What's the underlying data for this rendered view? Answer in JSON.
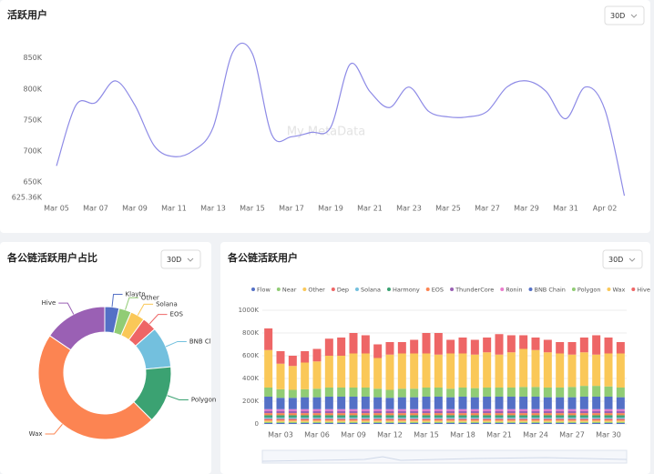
{
  "chart_data": [
    {
      "type": "line",
      "title": "活跃用户",
      "range": "30D",
      "watermark": "My MetaData",
      "color": "#8d8ae6",
      "categories": [
        "Mar 05",
        null,
        "Mar 07",
        null,
        "Mar 09",
        null,
        "Mar 11",
        null,
        "Mar 13",
        null,
        "Mar 15",
        null,
        "Mar 17",
        null,
        "Mar 19",
        null,
        "Mar 21",
        null,
        "Mar 23",
        null,
        "Mar 25",
        null,
        "Mar 27",
        null,
        "Mar 29",
        null,
        "Mar 31",
        null,
        "Apr 02",
        null
      ],
      "values": [
        676000,
        774000,
        778000,
        813000,
        774000,
        708000,
        691000,
        701000,
        738000,
        859000,
        857000,
        726000,
        723000,
        730000,
        738000,
        840000,
        796000,
        770000,
        803000,
        764000,
        755000,
        755000,
        764000,
        803000,
        813000,
        796000,
        752000,
        803000,
        767000,
        628000
      ],
      "ylim": [
        625360,
        870000
      ],
      "yticks": [
        {
          "value": 625360,
          "label": "625.36K"
        },
        {
          "value": 650000,
          "label": "650K"
        },
        {
          "value": 700000,
          "label": "700K"
        },
        {
          "value": 750000,
          "label": "750K"
        },
        {
          "value": 800000,
          "label": "800K"
        },
        {
          "value": 850000,
          "label": "850K"
        }
      ],
      "grid": false
    },
    {
      "type": "pie",
      "title": "各公链活跃用户占比",
      "range": "30D",
      "categories": [
        "Klaytn",
        "Other",
        "Solana",
        "EOS",
        "BNB Cl",
        "Polygon",
        "Wax",
        "Hive"
      ],
      "values": [
        3.5,
        3,
        3.5,
        3.5,
        10,
        14,
        47,
        15.5
      ],
      "colors": [
        "#5470c6",
        "#91cc75",
        "#fac858",
        "#ee6666",
        "#73c0de",
        "#3ba272",
        "#fc8452",
        "#9a60b4"
      ]
    },
    {
      "type": "stacked-bar",
      "title": "各公链活跃用户",
      "range": "30D",
      "grid": true,
      "categories": [
        null,
        "Mar 03",
        null,
        null,
        "Mar 06",
        null,
        null,
        "Mar 09",
        null,
        null,
        "Mar 12",
        null,
        null,
        "Mar 15",
        null,
        null,
        "Mar 18",
        null,
        null,
        "Mar 21",
        null,
        null,
        "Mar 24",
        null,
        null,
        "Mar 27",
        null,
        null,
        "Mar 30",
        null
      ],
      "ylim": [
        0,
        1000000
      ],
      "yticks": [
        0,
        {
          "value": 200000,
          "label": "200K"
        },
        {
          "value": 400000,
          "label": "400K"
        },
        {
          "value": 600000,
          "label": "600K"
        },
        {
          "value": 800000,
          "label": "800K"
        },
        {
          "value": 1000000,
          "label": "1000K"
        }
      ],
      "series": [
        {
          "name": "Flow",
          "color": "#5470c6",
          "values": [
            8000,
            8000,
            8000,
            8000,
            8000,
            8000,
            8000,
            8000,
            8000,
            8000,
            8000,
            8000,
            8000,
            8000,
            8000,
            8000,
            8000,
            8000,
            8000,
            8000,
            8000,
            8000,
            8000,
            8000,
            8000,
            8000,
            8000,
            8000,
            8000,
            8000
          ]
        },
        {
          "name": "Near",
          "color": "#91cc75",
          "values": [
            10000,
            10000,
            10000,
            10000,
            10000,
            10000,
            10000,
            10000,
            10000,
            10000,
            10000,
            10000,
            10000,
            10000,
            10000,
            10000,
            10000,
            10000,
            10000,
            10000,
            10000,
            10000,
            10000,
            10000,
            10000,
            10000,
            10000,
            10000,
            10000,
            10000
          ]
        },
        {
          "name": "Other",
          "color": "#fac858",
          "values": [
            12000,
            12000,
            12000,
            12000,
            12000,
            12000,
            12000,
            12000,
            12000,
            12000,
            12000,
            12000,
            12000,
            12000,
            12000,
            12000,
            12000,
            12000,
            12000,
            12000,
            12000,
            12000,
            12000,
            12000,
            12000,
            12000,
            12000,
            12000,
            12000,
            12000
          ]
        },
        {
          "name": "Dep",
          "color": "#ee6666",
          "values": [
            15000,
            15000,
            15000,
            15000,
            15000,
            15000,
            15000,
            15000,
            15000,
            15000,
            15000,
            15000,
            15000,
            15000,
            15000,
            15000,
            15000,
            15000,
            15000,
            15000,
            15000,
            15000,
            15000,
            15000,
            15000,
            15000,
            15000,
            15000,
            15000,
            15000
          ]
        },
        {
          "name": "Solana",
          "color": "#73c0de",
          "values": [
            12000,
            12000,
            12000,
            12000,
            12000,
            12000,
            12000,
            12000,
            12000,
            12000,
            12000,
            12000,
            12000,
            12000,
            12000,
            12000,
            12000,
            12000,
            12000,
            12000,
            12000,
            12000,
            12000,
            12000,
            12000,
            12000,
            12000,
            12000,
            12000,
            12000
          ]
        },
        {
          "name": "Harmony",
          "color": "#3ba272",
          "values": [
            20000,
            20000,
            20000,
            20000,
            20000,
            20000,
            20000,
            20000,
            20000,
            20000,
            20000,
            20000,
            20000,
            20000,
            20000,
            20000,
            20000,
            20000,
            20000,
            20000,
            20000,
            20000,
            20000,
            20000,
            20000,
            20000,
            20000,
            20000,
            20000,
            20000
          ]
        },
        {
          "name": "EOS",
          "color": "#fc8452",
          "values": [
            18000,
            18000,
            18000,
            18000,
            18000,
            18000,
            18000,
            18000,
            18000,
            18000,
            18000,
            18000,
            18000,
            18000,
            18000,
            18000,
            18000,
            18000,
            18000,
            18000,
            18000,
            18000,
            18000,
            18000,
            18000,
            18000,
            18000,
            18000,
            18000,
            18000
          ]
        },
        {
          "name": "ThunderCore",
          "color": "#9a60b4",
          "values": [
            20000,
            20000,
            20000,
            20000,
            20000,
            20000,
            20000,
            20000,
            20000,
            20000,
            20000,
            20000,
            20000,
            20000,
            20000,
            20000,
            20000,
            20000,
            20000,
            20000,
            20000,
            20000,
            20000,
            20000,
            20000,
            20000,
            20000,
            20000,
            20000,
            20000
          ]
        },
        {
          "name": "Ronin",
          "color": "#ea7ccc",
          "values": [
            15000,
            15000,
            15000,
            15000,
            15000,
            15000,
            15000,
            15000,
            15000,
            15000,
            15000,
            15000,
            15000,
            15000,
            15000,
            15000,
            15000,
            15000,
            15000,
            15000,
            15000,
            15000,
            15000,
            15000,
            15000,
            15000,
            15000,
            15000,
            15000,
            15000
          ]
        },
        {
          "name": "BNB Chain",
          "color": "#5470c6",
          "values": [
            110000,
            100000,
            100000,
            105000,
            105000,
            110000,
            110000,
            110000,
            110000,
            105000,
            100000,
            105000,
            105000,
            110000,
            110000,
            105000,
            110000,
            105000,
            110000,
            110000,
            110000,
            110000,
            110000,
            105000,
            105000,
            105000,
            110000,
            110000,
            110000,
            105000
          ]
        },
        {
          "name": "Polygon",
          "color": "#91cc75",
          "values": [
            80000,
            75000,
            70000,
            70000,
            75000,
            80000,
            80000,
            80000,
            80000,
            75000,
            70000,
            75000,
            75000,
            80000,
            80000,
            75000,
            80000,
            80000,
            80000,
            80000,
            80000,
            85000,
            85000,
            85000,
            85000,
            90000,
            95000,
            95000,
            90000,
            85000
          ]
        },
        {
          "name": "Wax",
          "color": "#fac858",
          "values": [
            330000,
            225000,
            210000,
            235000,
            240000,
            280000,
            280000,
            300000,
            300000,
            270000,
            310000,
            310000,
            310000,
            300000,
            290000,
            310000,
            300000,
            295000,
            310000,
            290000,
            310000,
            335000,
            325000,
            310000,
            300000,
            285000,
            295000,
            275000,
            290000,
            300000
          ]
        },
        {
          "name": "Hive",
          "color": "#ee6666",
          "values": [
            190000,
            110000,
            90000,
            100000,
            110000,
            150000,
            160000,
            180000,
            160000,
            120000,
            110000,
            100000,
            120000,
            180000,
            190000,
            120000,
            140000,
            130000,
            130000,
            180000,
            150000,
            120000,
            110000,
            110000,
            100000,
            110000,
            130000,
            170000,
            140000,
            100000
          ]
        }
      ]
    }
  ]
}
